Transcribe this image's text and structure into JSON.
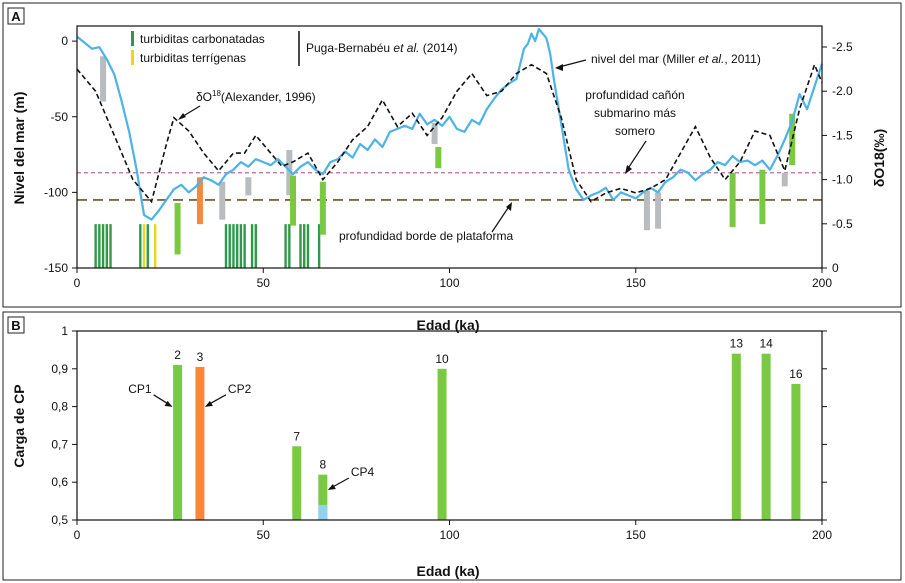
{
  "chart_data": [
    {
      "panel": "A",
      "type": "line",
      "xlabel": "Edad (ka)",
      "ylabel": "Nivel del mar (m)",
      "ylabel_right": "δO18(‰)",
      "xlim": [
        0,
        200
      ],
      "ylim": [
        -150,
        10
      ],
      "ylim_right": [
        0,
        2.5
      ],
      "y_right_reversed": true,
      "xticks": [
        0,
        50,
        100,
        150,
        200
      ],
      "yticks": [
        0,
        -50,
        -100,
        -150
      ],
      "yticks_right": [
        "-2.5",
        "-2.0",
        "-1.5",
        "-1.0",
        "-0.5",
        "0"
      ],
      "colors": {
        "sea_level": "#4db3e6",
        "d18o": "#111111",
        "carb": "#2e9a4a",
        "terr": "#f2d21b",
        "green_bar": "#7ac943",
        "orange_bar": "#f7873b",
        "gray_bar": "#b8bcbf",
        "canyon_line": "#c0659e",
        "shelf_line": "#7d6a3a"
      },
      "legend": {
        "carbonatadas": "turbiditas carbonatadas",
        "terrigenas": "turbiditas terrígenas",
        "source": "Puga-Bernabéu",
        "source_italic": "et al.",
        "source_year": " (2014)"
      },
      "annotations": {
        "d18o": "δO",
        "d18o_sup": "18",
        "d18o_rest": "(Alexander, 1996)",
        "sea_level": "nivel del mar (Miller ",
        "sea_level_italic": "et al.",
        "sea_level_rest": ", 2011)",
        "canyon": [
          "profundidad cañón",
          "submarino más",
          "somero"
        ],
        "shelf": "profundidad borde de plataforma"
      },
      "canyon_depth": -87,
      "shelf_depth": -105,
      "series": [
        {
          "name": "nivel del mar (Miller et al., 2011)",
          "x": [
            0,
            2,
            4,
            6,
            8,
            10,
            12,
            14,
            16,
            17,
            18,
            20,
            22,
            24,
            26,
            28,
            30,
            32,
            34,
            36,
            38,
            40,
            42,
            44,
            46,
            48,
            50,
            52,
            54,
            56,
            58,
            60,
            62,
            64,
            66,
            68,
            70,
            72,
            74,
            76,
            78,
            80,
            82,
            84,
            86,
            88,
            90,
            92,
            94,
            96,
            98,
            100,
            102,
            104,
            106,
            108,
            110,
            112,
            114,
            116,
            118,
            120,
            121,
            122,
            123,
            124,
            125,
            126,
            127,
            128,
            130,
            132,
            134,
            136,
            138,
            140,
            142,
            144,
            146,
            148,
            150,
            152,
            154,
            156,
            158,
            160,
            162,
            164,
            166,
            168,
            170,
            172,
            174,
            176,
            178,
            180,
            182,
            184,
            186,
            188,
            190,
            192,
            194,
            196,
            198,
            200
          ],
          "y": [
            3,
            -1,
            -5,
            -4,
            -12,
            -22,
            -40,
            -60,
            -85,
            -100,
            -115,
            -118,
            -112,
            -105,
            -98,
            -95,
            -100,
            -96,
            -90,
            -92,
            -95,
            -88,
            -85,
            -80,
            -83,
            -78,
            -80,
            -82,
            -78,
            -83,
            -88,
            -83,
            -80,
            -85,
            -88,
            -80,
            -78,
            -73,
            -77,
            -68,
            -72,
            -65,
            -70,
            -60,
            -58,
            -56,
            -58,
            -48,
            -55,
            -52,
            -56,
            -50,
            -58,
            -60,
            -52,
            -55,
            -45,
            -38,
            -32,
            -28,
            -25,
            -5,
            -2,
            5,
            0,
            8,
            5,
            2,
            -8,
            -25,
            -55,
            -85,
            -98,
            -105,
            -102,
            -100,
            -97,
            -105,
            -100,
            -102,
            -104,
            -100,
            -97,
            -100,
            -93,
            -90,
            -85,
            -87,
            -92,
            -88,
            -85,
            -80,
            -82,
            -76,
            -80,
            -79,
            -82,
            -79,
            -85,
            -76,
            -65,
            -53,
            -35,
            -45,
            -30,
            -15
          ]
        },
        {
          "name": "δO18 (Alexander, 1996)",
          "x": [
            0,
            5,
            10,
            15,
            20,
            24,
            26,
            30,
            34,
            38,
            42,
            45,
            48,
            52,
            55,
            58,
            62,
            66,
            70,
            74,
            78,
            82,
            86,
            90,
            94,
            98,
            102,
            106,
            110,
            114,
            118,
            122,
            126,
            130,
            134,
            138,
            142,
            146,
            150,
            154,
            158,
            162,
            166,
            170,
            174,
            178,
            182,
            186,
            190,
            194,
            198,
            200
          ],
          "y": [
            2.25,
            2.0,
            1.5,
            1.0,
            0.75,
            1.4,
            1.7,
            1.55,
            1.3,
            1.1,
            1.3,
            1.3,
            1.5,
            1.3,
            1.15,
            1.2,
            1.3,
            1.0,
            1.2,
            1.45,
            1.6,
            1.9,
            1.6,
            1.75,
            1.5,
            1.7,
            2.0,
            2.2,
            1.95,
            2.0,
            2.2,
            2.3,
            2.2,
            1.7,
            1.0,
            0.75,
            0.85,
            0.9,
            0.85,
            0.9,
            1.0,
            1.3,
            1.6,
            1.25,
            1.0,
            1.2,
            1.55,
            1.5,
            1.1,
            1.8,
            2.3,
            2.1
          ]
        }
      ],
      "turbidites_carbonatadas": [
        5,
        6,
        7,
        8,
        9,
        17,
        19,
        40,
        41,
        42,
        43,
        44,
        45,
        47,
        48,
        56,
        57,
        60,
        61,
        62,
        65
      ],
      "turbidites_terrigenas": [
        18,
        21
      ],
      "green_bars": [
        {
          "x": 27,
          "top": -107,
          "bottom": -141
        },
        {
          "x": 58,
          "top": -89,
          "bottom": -122
        },
        {
          "x": 66,
          "top": -93,
          "bottom": -128
        },
        {
          "x": 97,
          "top": -70,
          "bottom": -84
        },
        {
          "x": 176,
          "top": -87,
          "bottom": -123
        },
        {
          "x": 184,
          "top": -85,
          "bottom": -121
        },
        {
          "x": 192,
          "top": -48,
          "bottom": -82
        }
      ],
      "orange_bars": [
        {
          "x": 33,
          "top": -90,
          "bottom": -121
        }
      ],
      "gray_bars": [
        {
          "x": 7,
          "top": -10,
          "bottom": -40
        },
        {
          "x": 39,
          "top": -93,
          "bottom": -118
        },
        {
          "x": 46,
          "top": -90,
          "bottom": -102
        },
        {
          "x": 57,
          "top": -72,
          "bottom": -102
        },
        {
          "x": 96,
          "top": -54,
          "bottom": -68
        },
        {
          "x": 153,
          "top": -99,
          "bottom": -125
        },
        {
          "x": 156,
          "top": -100,
          "bottom": -124
        },
        {
          "x": 190,
          "top": -87,
          "bottom": -96
        }
      ]
    },
    {
      "panel": "B",
      "type": "bar",
      "xlabel": "Edad (ka)",
      "ylabel": "Carga de CP",
      "xlim": [
        0,
        200
      ],
      "ylim": [
        0.5,
        1
      ],
      "xticks": [
        0,
        50,
        100,
        150,
        200
      ],
      "yticks": [
        0.5,
        0.6,
        0.7,
        0.8,
        0.9,
        1
      ],
      "ytick_labels": [
        "0,5",
        "0,6",
        "0,7",
        "0,8",
        "0,9",
        "1"
      ],
      "bars": [
        {
          "label": "2",
          "x": 27,
          "value": 0.91,
          "color": "#7ac943"
        },
        {
          "label": "3",
          "x": 33,
          "value": 0.905,
          "color": "#f7873b"
        },
        {
          "label": "7",
          "x": 59,
          "value": 0.695,
          "color": "#7ac943"
        },
        {
          "label": "8",
          "x": 66,
          "value": 0.62,
          "color": "#7ac943",
          "low_value": 0.54,
          "low_color": "#8ed3f0"
        },
        {
          "label": "10",
          "x": 98,
          "value": 0.9,
          "color": "#7ac943"
        },
        {
          "label": "13",
          "x": 177,
          "value": 0.94,
          "color": "#7ac943"
        },
        {
          "label": "14",
          "x": 185,
          "value": 0.94,
          "color": "#7ac943"
        },
        {
          "label": "16",
          "x": 193,
          "value": 0.86,
          "color": "#7ac943"
        }
      ],
      "annotations": [
        {
          "text": "CP1",
          "x": 27,
          "y": 0.81,
          "side": "left"
        },
        {
          "text": "CP2",
          "x": 33,
          "y": 0.81,
          "side": "right"
        },
        {
          "text": "CP4",
          "x": 66,
          "y": 0.59,
          "side": "right"
        }
      ]
    }
  ],
  "panel_labels": {
    "a": "A",
    "b": "B"
  }
}
